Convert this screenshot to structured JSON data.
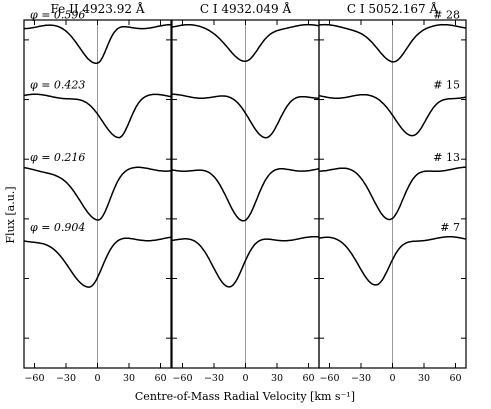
{
  "chart_data": {
    "type": "line",
    "panels": [
      {
        "title": "Fe II 4923.92 Å",
        "line_center": 0,
        "lowest_width": 15,
        "lowest_depth": 0.8,
        "wing_offset": 55
      },
      {
        "title": "C I 4932.049 Å",
        "line_center": 0,
        "lowest_width": 12,
        "lowest_depth": 0.85,
        "wing_offset": 0
      },
      {
        "title": "C I 5052.167 Å",
        "line_center": 0,
        "lowest_width": 14,
        "lowest_depth": 0.82,
        "wing_offset": 0
      }
    ],
    "phase_labels": [
      "φ = 0.596",
      "φ = 0.423",
      "φ = 0.216",
      "φ = 0.904"
    ],
    "spectrum_labels": [
      "# 28",
      "# 15",
      "# 13",
      "# 7"
    ],
    "series": [
      {
        "phase": "0.596",
        "spectrum": "# 28",
        "fe_ii_min_velocity": 0,
        "c_i_min_velocity": 0,
        "offset": 3.2,
        "depth": 0.55
      },
      {
        "phase": "0.423",
        "spectrum": "# 15",
        "fe_ii_min_velocity": 20,
        "c_i_min_velocity": 20,
        "offset": 2.15,
        "depth": 0.6
      },
      {
        "phase": "0.216",
        "spectrum": "# 13",
        "fe_ii_min_velocity": 0,
        "c_i_min_velocity": -2,
        "offset": 1.05,
        "depth": 0.75
      },
      {
        "phase": "0.904",
        "spectrum": "# 7",
        "fe_ii_min_velocity": -8,
        "c_i_min_velocity": -15,
        "offset": 0.0,
        "depth": 0.7
      }
    ],
    "xlim": [
      -70,
      70
    ],
    "x_ticks": [
      -60,
      -30,
      0,
      30,
      60
    ],
    "x_tick_labels": [
      "−60",
      "−30",
      "0",
      "30",
      "60"
    ],
    "xlabel": "Centre-of-Mass Radial Velocity [km s⁻¹]",
    "ylabel": "Flux [a.u.]",
    "grid": false
  }
}
